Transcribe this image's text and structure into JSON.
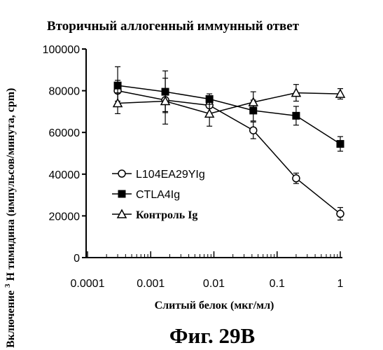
{
  "chart_data": {
    "type": "line",
    "title": "Вторичный аллогенный иммунный ответ",
    "ylabel_main": "Включение ",
    "ylabel_sup": "3",
    "ylabel_rest": "Н тимидина (импульсов/минута, cpm)",
    "xlabel": "Слитый белок (мкг/мл)",
    "x_scale": "log",
    "xlim": [
      0.0001,
      1
    ],
    "ylim": [
      0,
      100000
    ],
    "x_ticks": [
      0.0001,
      0.001,
      0.01,
      0.1,
      1
    ],
    "x_tick_labels": [
      "0.0001",
      "0.001",
      "0.01",
      "0.1",
      "1"
    ],
    "y_ticks": [
      0,
      20000,
      40000,
      60000,
      80000,
      100000
    ],
    "y_tick_labels": [
      "0",
      "20000",
      "40000",
      "60000",
      "80000",
      "100000"
    ],
    "x": [
      0.0003,
      0.0017,
      0.0085,
      0.042,
      0.2,
      1
    ],
    "series": [
      {
        "name": "L104EA29YIg",
        "marker": "open-circle",
        "values": [
          80000,
          75500,
          73000,
          61000,
          38000,
          21000
        ],
        "errors": [
          5000,
          5500,
          4000,
          4000,
          2500,
          3000
        ]
      },
      {
        "name": "CTLA4Ig",
        "marker": "filled-square",
        "values": [
          82500,
          79500,
          76000,
          70500,
          68000,
          54500
        ],
        "errors": [
          9000,
          10000,
          2500,
          5000,
          4500,
          3500
        ]
      },
      {
        "name": "Контроль Ig",
        "marker": "open-triangle",
        "values": [
          74000,
          75000,
          69000,
          74500,
          79000,
          78500
        ],
        "errors": [
          5000,
          11000,
          6000,
          5000,
          4000,
          2500
        ]
      }
    ],
    "legend_position": "left-middle"
  },
  "caption": "Фиг. 29B"
}
